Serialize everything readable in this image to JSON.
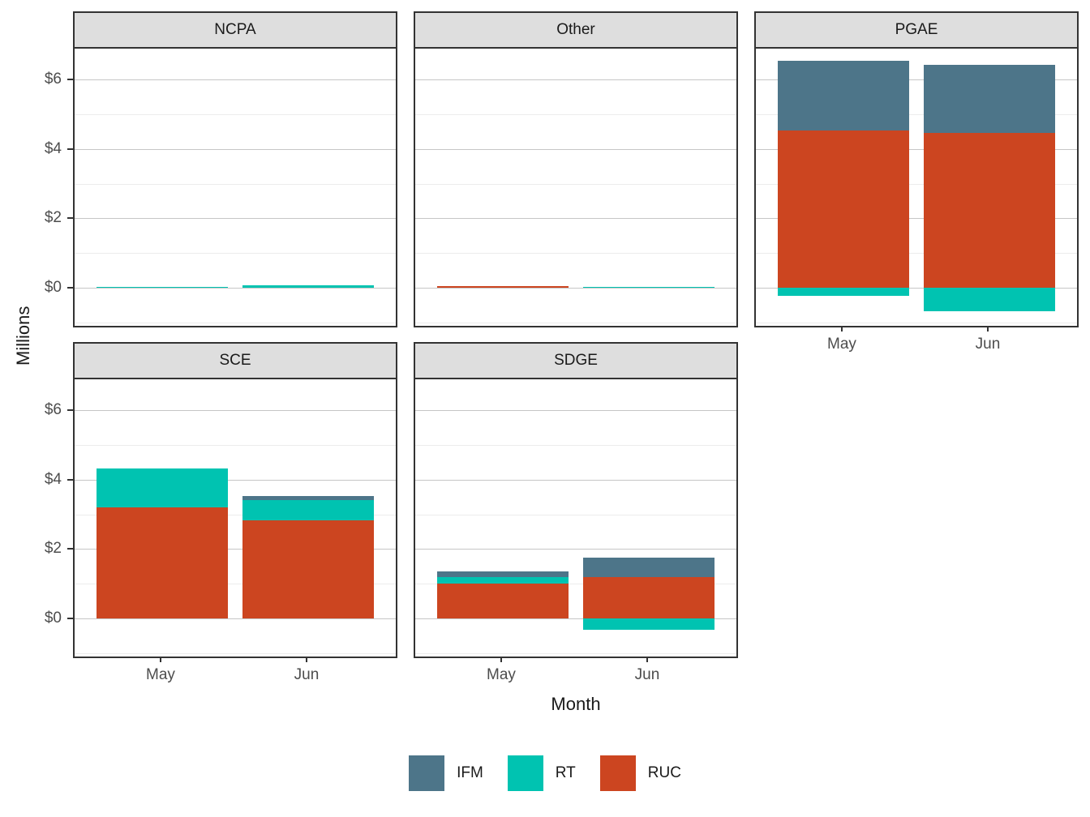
{
  "figure": {
    "y_axis_title": "Millions",
    "x_axis_title": "Month"
  },
  "legend": {
    "items": [
      {
        "label": "IFM",
        "color": "#4d7589"
      },
      {
        "label": "RT",
        "color": "#00c3b1"
      },
      {
        "label": "RUC",
        "color": "#cc4520"
      }
    ]
  },
  "chart_data": {
    "type": "bar",
    "stacked": true,
    "title": "",
    "xlabel": "Month",
    "ylabel": "Millions",
    "categories": [
      "May",
      "Jun"
    ],
    "series_order": [
      "RUC",
      "RT",
      "IFM"
    ],
    "colors": {
      "IFM": "#4d7589",
      "RT": "#00c3b1",
      "RUC": "#cc4520"
    },
    "ylim": [
      -1.1,
      6.9
    ],
    "major_gridlines": [
      0,
      2,
      4,
      6
    ],
    "minor_gridlines": [
      -1,
      1,
      3,
      5
    ],
    "y_tick_format": {
      "0": "$0",
      "2": "$2",
      "4": "$4",
      "6": "$6"
    },
    "grid": true,
    "legend_position": "bottom",
    "facets": [
      {
        "title": "NCPA",
        "values": {
          "May": {
            "IFM": 0,
            "RT": 0.03,
            "RUC": 0
          },
          "Jun": {
            "IFM": 0,
            "RT": 0.06,
            "RUC": 0
          }
        }
      },
      {
        "title": "Other",
        "values": {
          "May": {
            "IFM": 0,
            "RT": 0,
            "RUC": 0.05
          },
          "Jun": {
            "IFM": 0,
            "RT": 0.03,
            "RUC": 0
          }
        }
      },
      {
        "title": "PGAE",
        "values": {
          "May": {
            "IFM": 2.0,
            "RT": -0.24,
            "RUC": 4.54
          },
          "Jun": {
            "IFM": 1.97,
            "RT": -0.68,
            "RUC": 4.47
          }
        }
      },
      {
        "title": "SCE",
        "values": {
          "May": {
            "IFM": 0,
            "RT": 1.12,
            "RUC": 3.21
          },
          "Jun": {
            "IFM": 0.11,
            "RT": 0.6,
            "RUC": 2.82
          }
        }
      },
      {
        "title": "SDGE",
        "values": {
          "May": {
            "IFM": 0.16,
            "RT": 0.2,
            "RUC": 1.0
          },
          "Jun": {
            "IFM": 0.56,
            "RT": -0.33,
            "RUC": 1.2
          }
        }
      }
    ]
  }
}
